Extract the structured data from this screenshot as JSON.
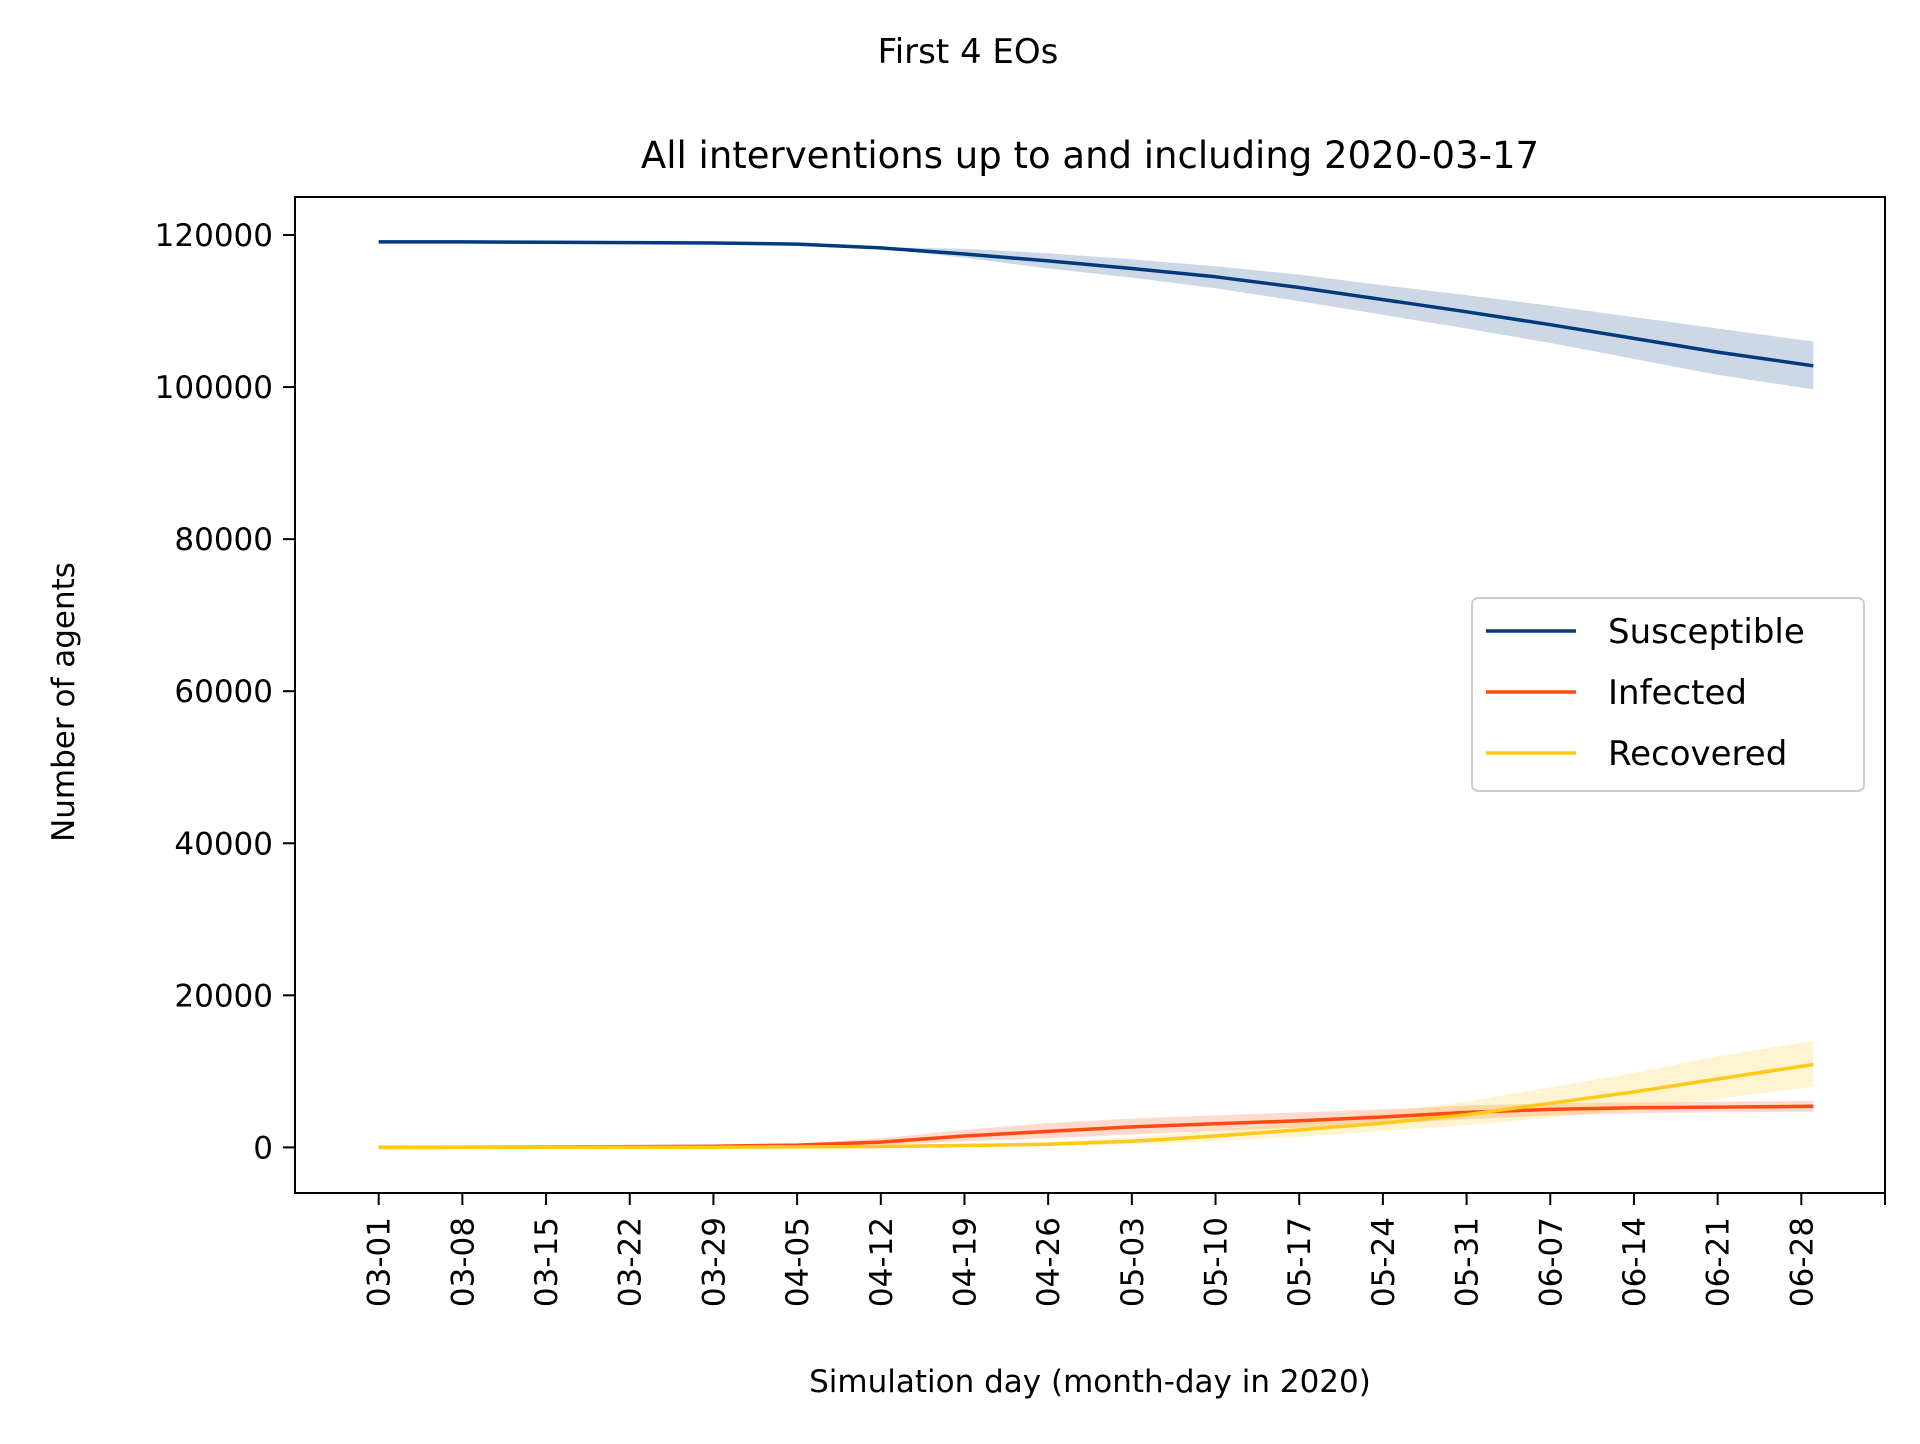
{
  "figure": {
    "suptitle": "First 4 EOs"
  },
  "chart_data": {
    "type": "line",
    "title": "All interventions up to and including 2020-03-17",
    "xlabel": "Simulation day (month-day in 2020)",
    "ylabel": "Number of agents",
    "x_start": "03-01",
    "x_end": "06-29",
    "xlim": [
      "02-23",
      "07-05"
    ],
    "ylim": [
      -6000,
      125000
    ],
    "x_ticks": [
      "03-01",
      "03-08",
      "03-15",
      "03-22",
      "03-29",
      "04-05",
      "04-12",
      "04-19",
      "04-26",
      "05-03",
      "05-10",
      "05-17",
      "05-24",
      "05-31",
      "06-07",
      "06-14",
      "06-21",
      "06-28"
    ],
    "y_ticks": [
      0,
      20000,
      40000,
      60000,
      80000,
      100000,
      120000
    ],
    "y_tick_labels": [
      "0",
      "20000",
      "40000",
      "60000",
      "80000",
      "100000",
      "120000"
    ],
    "grid": false,
    "legend_position": "center-right",
    "series": [
      {
        "name": "Susceptible",
        "color": "#003a7d",
        "x": [
          "03-01",
          "03-08",
          "03-15",
          "03-22",
          "03-29",
          "04-05",
          "04-12",
          "04-19",
          "04-26",
          "05-03",
          "05-10",
          "05-17",
          "05-24",
          "05-31",
          "06-07",
          "06-14",
          "06-21",
          "06-29"
        ],
        "values": [
          119100,
          119100,
          119050,
          119000,
          118950,
          118800,
          118300,
          117500,
          116600,
          115600,
          114500,
          113100,
          111500,
          109900,
          108200,
          106400,
          104600,
          102800
        ],
        "upper": [
          119150,
          119150,
          119100,
          119050,
          119000,
          118850,
          118400,
          118200,
          117600,
          116800,
          115900,
          114800,
          113400,
          112100,
          110700,
          109200,
          107700,
          106000
        ],
        "lower": [
          119050,
          119050,
          119000,
          118950,
          118900,
          118700,
          118200,
          117000,
          115600,
          114400,
          113000,
          111300,
          109500,
          107700,
          105800,
          103700,
          101600,
          99700
        ]
      },
      {
        "name": "Infected",
        "color": "#ff4a11",
        "x": [
          "03-01",
          "03-08",
          "03-15",
          "03-22",
          "03-29",
          "04-05",
          "04-12",
          "04-19",
          "04-26",
          "05-03",
          "05-10",
          "05-17",
          "05-24",
          "05-31",
          "06-07",
          "06-14",
          "06-21",
          "06-29"
        ],
        "values": [
          0,
          20,
          50,
          100,
          150,
          300,
          700,
          1500,
          2100,
          2700,
          3100,
          3500,
          4000,
          4600,
          5000,
          5200,
          5300,
          5400
        ],
        "upper": [
          0,
          30,
          80,
          150,
          250,
          500,
          1200,
          2300,
          3200,
          3800,
          4200,
          4600,
          5000,
          5500,
          5800,
          5900,
          6000,
          6100
        ],
        "lower": [
          0,
          10,
          20,
          50,
          80,
          150,
          300,
          800,
          1200,
          1700,
          2200,
          2600,
          3100,
          3700,
          4200,
          4500,
          4600,
          4700
        ]
      },
      {
        "name": "Recovered",
        "color": "#ffc917",
        "x": [
          "03-01",
          "03-08",
          "03-15",
          "03-22",
          "03-29",
          "04-05",
          "04-12",
          "04-19",
          "04-26",
          "05-03",
          "05-10",
          "05-17",
          "05-24",
          "05-31",
          "06-07",
          "06-14",
          "06-21",
          "06-29"
        ],
        "values": [
          0,
          0,
          10,
          20,
          30,
          60,
          120,
          250,
          400,
          800,
          1500,
          2300,
          3200,
          4300,
          5800,
          7300,
          9000,
          10900
        ],
        "upper": [
          0,
          0,
          20,
          40,
          60,
          120,
          250,
          450,
          700,
          1300,
          2300,
          3300,
          4600,
          6000,
          7900,
          9800,
          12000,
          14000
        ],
        "lower": [
          0,
          0,
          5,
          10,
          15,
          30,
          60,
          120,
          200,
          400,
          800,
          1400,
          2100,
          2900,
          3900,
          5000,
          6400,
          8000
        ]
      }
    ]
  }
}
